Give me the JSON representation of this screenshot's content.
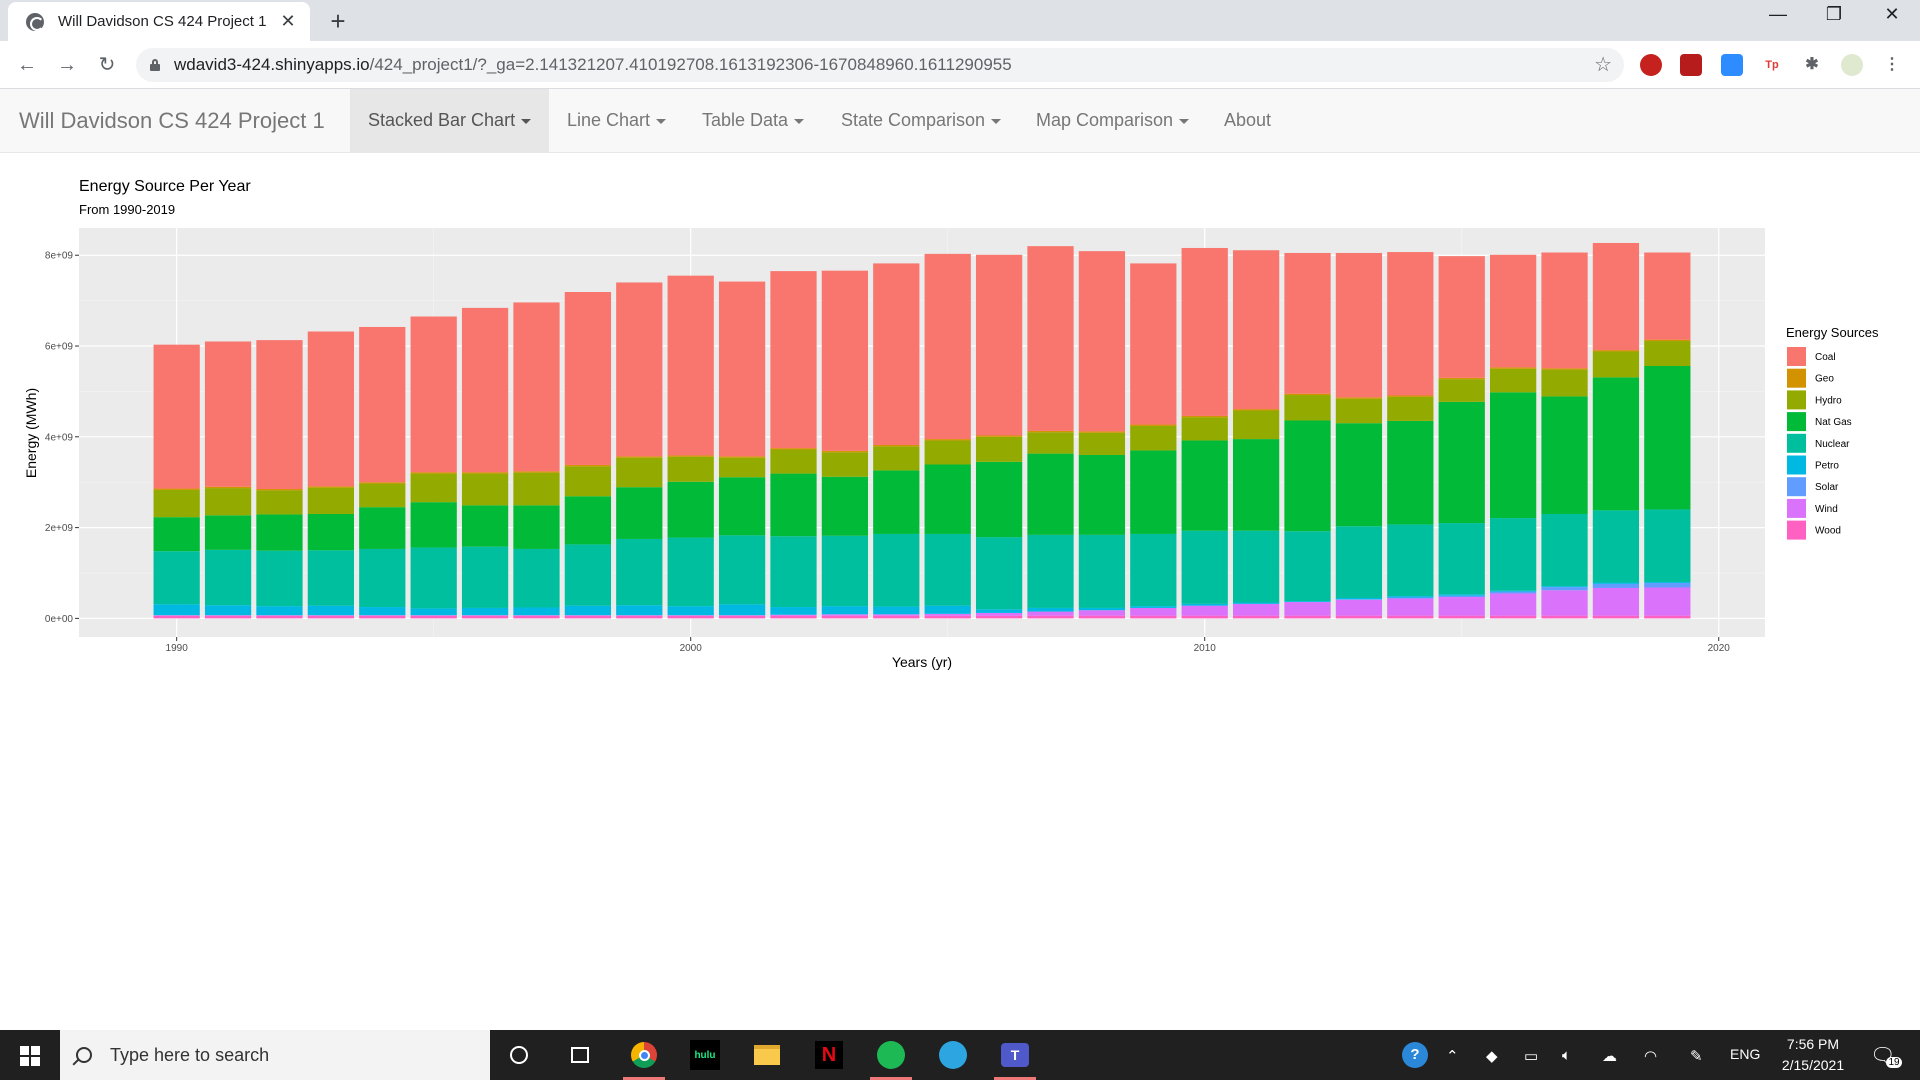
{
  "browser": {
    "tab_title": "Will Davidson CS 424 Project 1",
    "url_host": "wdavid3-424.shinyapps.io",
    "url_path": "/424_project1/?_ga=2.141321207.410192708.1613192306-1670848960.1611290955"
  },
  "app": {
    "brand": "Will Davidson CS 424 Project 1",
    "nav": [
      {
        "label": "Stacked Bar Chart",
        "dropdown": true,
        "active": true
      },
      {
        "label": "Line Chart",
        "dropdown": true,
        "active": false
      },
      {
        "label": "Table Data",
        "dropdown": true,
        "active": false
      },
      {
        "label": "State Comparison",
        "dropdown": true,
        "active": false
      },
      {
        "label": "Map Comparison",
        "dropdown": true,
        "active": false
      },
      {
        "label": "About",
        "dropdown": false,
        "active": false
      }
    ]
  },
  "chart_data": {
    "type": "bar",
    "stacked": true,
    "title": "Energy Source Per Year",
    "subtitle": "From 1990-2019",
    "xlabel": "Years (yr)",
    "ylabel": "Energy (MWh)",
    "xlim": [
      1988.1,
      2020.9
    ],
    "ylim": [
      -410000000.0,
      8600000000.0
    ],
    "x_ticks": [
      1990,
      2000,
      2010,
      2020
    ],
    "y_ticks": [
      0,
      2000000000.0,
      4000000000.0,
      6000000000.0,
      8000000000.0
    ],
    "y_tick_labels": [
      "0e+00",
      "2e+09",
      "4e+09",
      "6e+09",
      "8e+09"
    ],
    "grid": true,
    "legend_title": "Energy Sources",
    "legend_position": "right",
    "categories": [
      1990,
      1991,
      1992,
      1993,
      1994,
      1995,
      1996,
      1997,
      1998,
      1999,
      2000,
      2001,
      2002,
      2003,
      2004,
      2005,
      2006,
      2007,
      2008,
      2009,
      2010,
      2011,
      2012,
      2013,
      2014,
      2015,
      2016,
      2017,
      2018,
      2019
    ],
    "series": [
      {
        "name": "Wood",
        "color": "#FF61C3",
        "values": [
          0.06,
          0.06,
          0.06,
          0.06,
          0.06,
          0.06,
          0.06,
          0.06,
          0.06,
          0.06,
          0.06,
          0.06,
          0.06,
          0.06,
          0.06,
          0.06,
          0.06,
          0.06,
          0.06,
          0.06,
          0.06,
          0.06,
          0.06,
          0.06,
          0.06,
          0.06,
          0.06,
          0.06,
          0.06,
          0.06
        ]
      },
      {
        "name": "Wind",
        "color": "#DB72FB",
        "values": [
          0.01,
          0.01,
          0.01,
          0.01,
          0.01,
          0.01,
          0.01,
          0.01,
          0.01,
          0.01,
          0.01,
          0.01,
          0.02,
          0.03,
          0.03,
          0.04,
          0.06,
          0.09,
          0.12,
          0.17,
          0.22,
          0.26,
          0.3,
          0.35,
          0.38,
          0.41,
          0.49,
          0.56,
          0.61,
          0.62
        ]
      },
      {
        "name": "Solar",
        "color": "#619CFF",
        "values": [
          0,
          0,
          0,
          0,
          0,
          0,
          0,
          0,
          0,
          0,
          0,
          0,
          0,
          0,
          0,
          0,
          0,
          0,
          0,
          0,
          0,
          0,
          0,
          0.01,
          0.02,
          0.03,
          0.04,
          0.07,
          0.09,
          0.1
        ]
      },
      {
        "name": "Petro",
        "color": "#00B9E3",
        "values": [
          0.24,
          0.22,
          0.2,
          0.21,
          0.18,
          0.15,
          0.16,
          0.17,
          0.21,
          0.22,
          0.2,
          0.24,
          0.17,
          0.18,
          0.17,
          0.18,
          0.08,
          0.08,
          0.05,
          0.04,
          0.04,
          0.03,
          0.02,
          0.03,
          0.03,
          0.03,
          0.02,
          0.02,
          0.03,
          0.02
        ]
      },
      {
        "name": "Nuclear",
        "color": "#00BF9E",
        "values": [
          1.17,
          1.22,
          1.22,
          1.22,
          1.28,
          1.34,
          1.35,
          1.29,
          1.35,
          1.46,
          1.51,
          1.52,
          1.56,
          1.55,
          1.6,
          1.58,
          1.59,
          1.61,
          1.61,
          1.59,
          1.61,
          1.58,
          1.54,
          1.58,
          1.58,
          1.57,
          1.6,
          1.59,
          1.59,
          1.6
        ]
      },
      {
        "name": "Nat Gas",
        "color": "#00BA38",
        "values": [
          0.75,
          0.76,
          0.8,
          0.8,
          0.92,
          1.0,
          0.91,
          0.96,
          1.06,
          1.14,
          1.23,
          1.28,
          1.38,
          1.3,
          1.4,
          1.53,
          1.66,
          1.79,
          1.76,
          1.84,
          1.99,
          2.02,
          2.44,
          2.27,
          2.28,
          2.67,
          2.77,
          2.59,
          2.93,
          3.16
        ]
      },
      {
        "name": "Hydro",
        "color": "#93AA00",
        "values": [
          0.6,
          0.6,
          0.53,
          0.58,
          0.52,
          0.63,
          0.7,
          0.72,
          0.66,
          0.65,
          0.55,
          0.43,
          0.53,
          0.54,
          0.53,
          0.53,
          0.55,
          0.47,
          0.49,
          0.54,
          0.51,
          0.63,
          0.56,
          0.54,
          0.53,
          0.5,
          0.52,
          0.59,
          0.57,
          0.55
        ]
      },
      {
        "name": "Geo",
        "color": "#D39200",
        "values": [
          0.03,
          0.03,
          0.03,
          0.03,
          0.03,
          0.03,
          0.03,
          0.03,
          0.03,
          0.03,
          0.03,
          0.03,
          0.03,
          0.03,
          0.03,
          0.03,
          0.03,
          0.03,
          0.03,
          0.03,
          0.03,
          0.03,
          0.03,
          0.03,
          0.03,
          0.03,
          0.03,
          0.03,
          0.03,
          0.03
        ]
      },
      {
        "name": "Coal",
        "color": "#F8766D",
        "values": [
          3.17,
          3.2,
          3.28,
          3.41,
          3.42,
          3.43,
          3.62,
          3.72,
          3.81,
          3.83,
          3.96,
          3.85,
          3.9,
          3.97,
          4.0,
          4.08,
          3.98,
          4.07,
          3.97,
          3.55,
          3.7,
          3.5,
          3.1,
          3.18,
          3.16,
          2.68,
          2.48,
          2.55,
          2.36,
          1.92
        ]
      }
    ],
    "unit_multiplier": 1000000000.0
  },
  "taskbar": {
    "search_placeholder": "Type here to search",
    "language": "ENG",
    "time": "7:56 PM",
    "date": "2/15/2021",
    "notification_count": "19",
    "apps": [
      "cortana-icon",
      "task-view-icon",
      "chrome-icon",
      "hulu-icon",
      "file-explorer-icon",
      "netflix-icon",
      "spotify-icon",
      "telegram-icon",
      "teams-icon"
    ],
    "hulu_label": "hulu",
    "netflix_label": "N"
  }
}
